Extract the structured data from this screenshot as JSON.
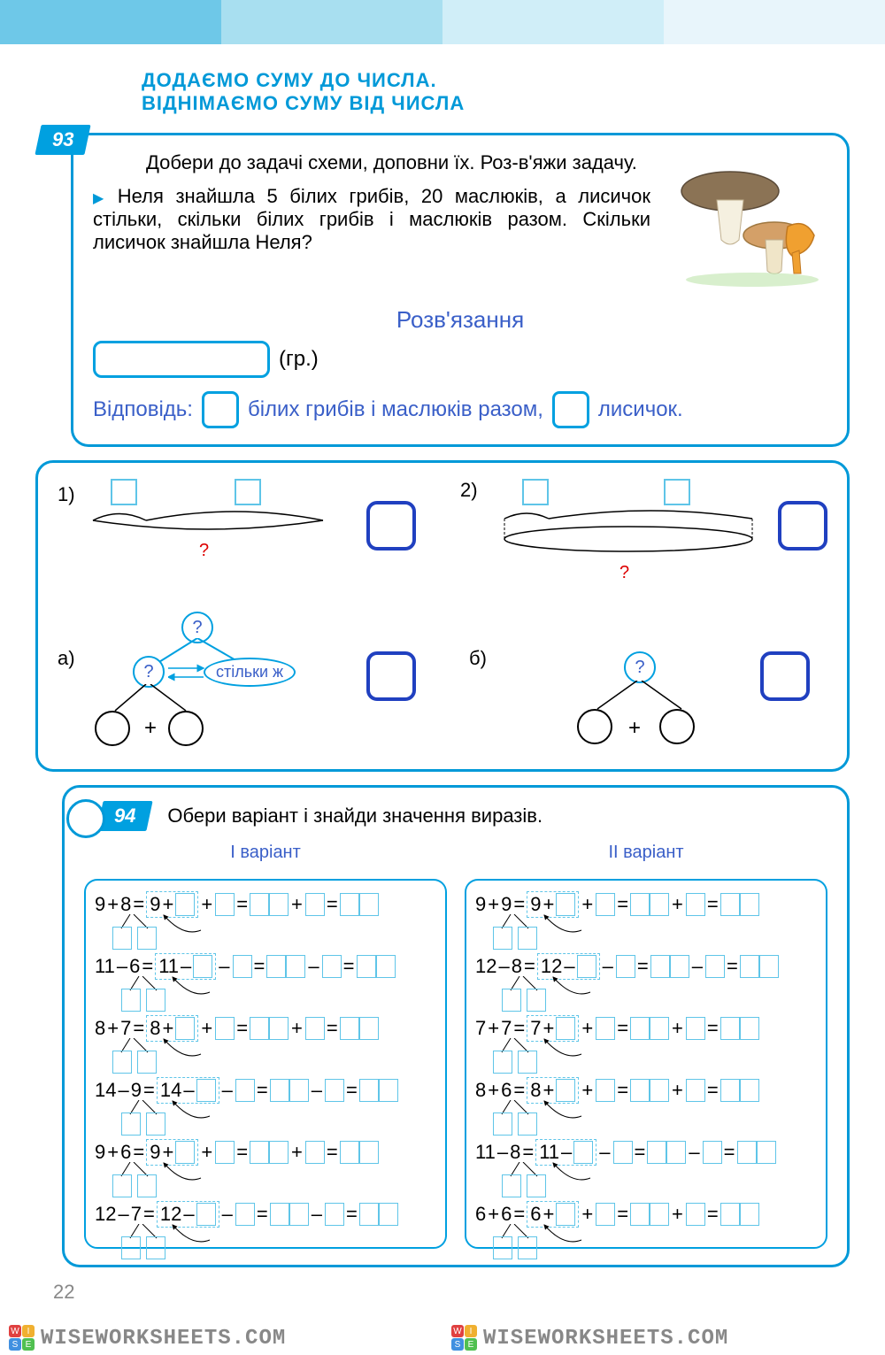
{
  "title_line1": "ДОДАЄМО СУМУ ДО ЧИСЛА.",
  "title_line2": "ВІДНІМАЄМО СУМУ ВІД ЧИСЛА",
  "task93": {
    "num": "93",
    "instr": "Добери до задачі схеми, доповни їх. Роз-в'яжи задачу.",
    "text": "Неля знайшла 5 білих грибів, 20 маслюків, а лисичок стільки, скільки білих грибів і маслюків разом. Скільки лисичок знайшла Неля?",
    "solve": "Розв'язання",
    "gr": "(гр.)",
    "answer": "Відповідь:",
    "ans1": "білих грибів і маслюків разом,",
    "ans2": "лисичок."
  },
  "schemes": {
    "s1": "1)",
    "s2": "2)",
    "q": "?",
    "a": "а)",
    "b": "б)",
    "same": "стільки ж",
    "plus": "+"
  },
  "task94": {
    "num": "94",
    "instr": "Обери варіант і знайди значення виразів.",
    "v1": "І варіант",
    "v2": "ІІ варіант",
    "col1": [
      {
        "a": "9",
        "op": "+",
        "b": "8",
        "c": "9",
        "op2": "+"
      },
      {
        "a": "11",
        "op": "–",
        "b": "6",
        "c": "11",
        "op2": "–"
      },
      {
        "a": "8",
        "op": "+",
        "b": "7",
        "c": "8",
        "op2": "+"
      },
      {
        "a": "14",
        "op": "–",
        "b": "9",
        "c": "14",
        "op2": "–"
      },
      {
        "a": "9",
        "op": "+",
        "b": "6",
        "c": "9",
        "op2": "+"
      },
      {
        "a": "12",
        "op": "–",
        "b": "7",
        "c": "12",
        "op2": "–"
      }
    ],
    "col2": [
      {
        "a": "9",
        "op": "+",
        "b": "9",
        "c": "9",
        "op2": "+"
      },
      {
        "a": "12",
        "op": "–",
        "b": "8",
        "c": "12",
        "op2": "–"
      },
      {
        "a": "7",
        "op": "+",
        "b": "7",
        "c": "7",
        "op2": "+"
      },
      {
        "a": "8",
        "op": "+",
        "b": "6",
        "c": "8",
        "op2": "+"
      },
      {
        "a": "11",
        "op": "–",
        "b": "8",
        "c": "11",
        "op2": "–"
      },
      {
        "a": "6",
        "op": "+",
        "b": "6",
        "c": "6",
        "op2": "+"
      }
    ]
  },
  "page": "22",
  "watermark": "WISEWORKSHEETS.COM",
  "colors": {
    "primary": "#0099d8",
    "accent": "#3a5fc8",
    "box": "#5fc5e8"
  }
}
